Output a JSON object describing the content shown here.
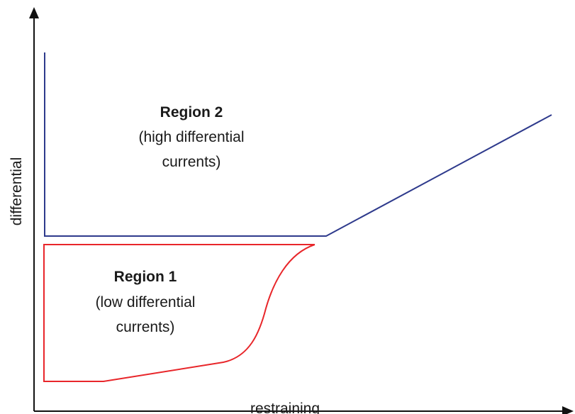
{
  "axes": {
    "x_label": "restraining",
    "y_label": "differential"
  },
  "regions": {
    "region2": {
      "title": "Region 2",
      "desc_line1": "(high differential",
      "desc_line2": "currents)"
    },
    "region1": {
      "title": "Region 1",
      "desc_line1": "(low differential",
      "desc_line2": "currents)"
    }
  },
  "colors": {
    "axis": "#111111",
    "region2_boundary": "#2e3a8c",
    "region1_boundary": "#e8262a"
  }
}
